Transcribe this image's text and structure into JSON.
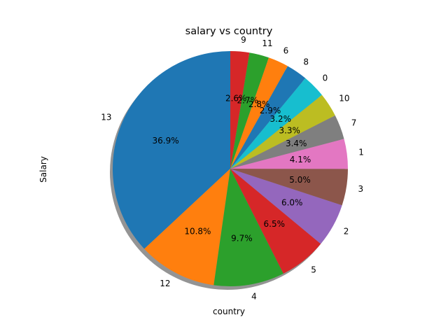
{
  "chart_data": {
    "type": "pie",
    "title": "salary vs country",
    "xlabel": "country",
    "ylabel": "Salary",
    "shadow": true,
    "start_angle_deg": 90,
    "direction": "counterclockwise",
    "categories": [
      "13",
      "12",
      "4",
      "5",
      "2",
      "3",
      "1",
      "7",
      "10",
      "0",
      "8",
      "6",
      "11",
      "9"
    ],
    "values": [
      36.9,
      10.8,
      9.7,
      6.5,
      6.0,
      5.0,
      4.1,
      3.4,
      3.3,
      3.2,
      2.9,
      2.8,
      2.7,
      2.6
    ],
    "percent_labels": [
      "36.9%",
      "10.8%",
      "9.7%",
      "6.5%",
      "6.0%",
      "5.0%",
      "4.1%",
      "3.4%",
      "3.3%",
      "3.2%",
      "2.9%",
      "2.8%",
      "2.7%",
      "2.6%"
    ],
    "colors": [
      "#1f77b4",
      "#ff7f0e",
      "#2ca02c",
      "#d62728",
      "#9467bd",
      "#8c564b",
      "#e377c2",
      "#7f7f7f",
      "#bcbd22",
      "#17becf",
      "#1f77b4",
      "#ff7f0e",
      "#2ca02c",
      "#d62728"
    ]
  }
}
